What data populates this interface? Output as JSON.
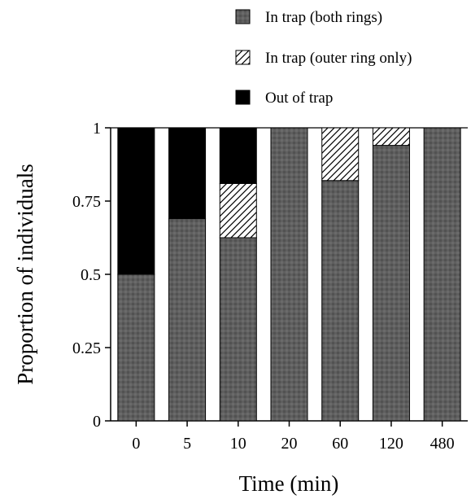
{
  "chart_data": {
    "type": "bar",
    "stacked": true,
    "xlabel": "Time (min)",
    "ylabel": "Proportion of individuals",
    "ylim": [
      0,
      1
    ],
    "yticks": [
      "0",
      "0.25",
      "0.5",
      "0.75",
      "1"
    ],
    "categories": [
      "0",
      "5",
      "10",
      "20",
      "60",
      "120",
      "480"
    ],
    "series": [
      {
        "name": "In trap (both rings)",
        "fill": "both",
        "values": [
          0.5,
          0.69,
          0.625,
          1.0,
          0.82,
          0.94,
          1.0
        ]
      },
      {
        "name": "In trap (outer ring only)",
        "fill": "hatch",
        "values": [
          0,
          0,
          0.185,
          0,
          0.18,
          0.06,
          0
        ]
      },
      {
        "name": "Out of trap",
        "fill": "black",
        "values": [
          0.5,
          0.31,
          0.19,
          0,
          0,
          0,
          0
        ]
      }
    ],
    "legend_position": "top-right",
    "grid": false
  }
}
